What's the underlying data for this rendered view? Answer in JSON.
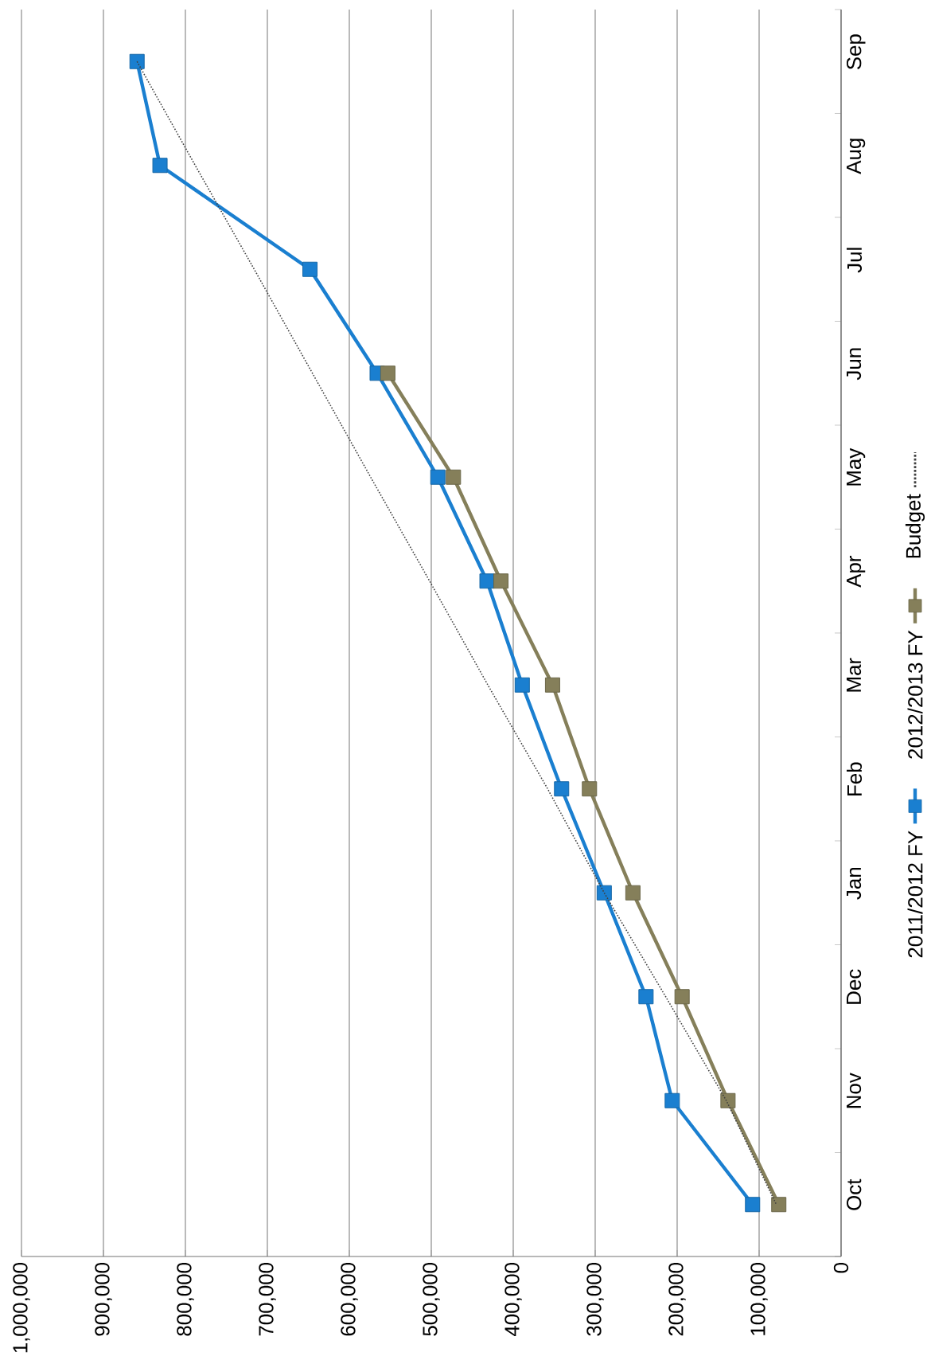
{
  "chart_data": {
    "type": "line",
    "orientation": "horizontal",
    "categories": [
      "Sep",
      "Aug",
      "Jul",
      "Jun",
      "May",
      "Apr",
      "Mar",
      "Feb",
      "Jan",
      "Dec",
      "Nov",
      "Oct"
    ],
    "series": [
      {
        "name": "2011/2012 FY",
        "color": "#1a7fd0",
        "marker": "square",
        "line_style": "solid",
        "values": [
          859000,
          831000,
          648000,
          566000,
          492000,
          432000,
          389000,
          341000,
          289000,
          238000,
          206000,
          108000
        ]
      },
      {
        "name": "2012/2013 FY",
        "color": "#857f5a",
        "marker": "square",
        "line_style": "solid",
        "values": [
          null,
          null,
          null,
          553000,
          473000,
          415000,
          352000,
          307000,
          254000,
          194000,
          138000,
          76000
        ]
      },
      {
        "name": "Budget",
        "color": "#404040",
        "marker": "none",
        "line_style": "dotted",
        "values": [
          859000,
          788000,
          716000,
          645000,
          574000,
          502000,
          431000,
          358000,
          289000,
          214000,
          140000,
          79000
        ]
      }
    ],
    "xlim": [
      1000000,
      0
    ],
    "xticks": [
      {
        "value": 0,
        "label": "0"
      },
      {
        "value": 100000,
        "label": "100,000"
      },
      {
        "value": 200000,
        "label": "200,000"
      },
      {
        "value": 300000,
        "label": "300,000"
      },
      {
        "value": 400000,
        "label": "400,000"
      },
      {
        "value": 500000,
        "label": "500,000"
      },
      {
        "value": 600000,
        "label": "600,000"
      },
      {
        "value": 700000,
        "label": "700,000"
      },
      {
        "value": 800000,
        "label": "800,000"
      },
      {
        "value": 900000,
        "label": "900,000"
      },
      {
        "value": 1000000,
        "label": "1,000,000"
      }
    ],
    "grid": "x",
    "legend": "right"
  }
}
